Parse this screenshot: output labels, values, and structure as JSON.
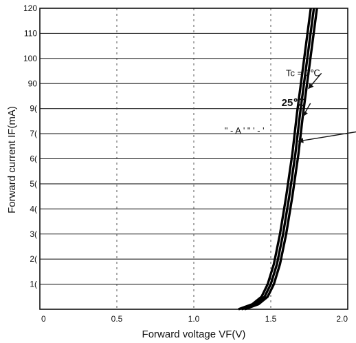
{
  "chart_data": {
    "type": "line",
    "title": "",
    "xlabel": "Forward  voltage  VF(V)",
    "ylabel": "Forward current IF(mA)",
    "xlim": [
      0,
      2.0
    ],
    "ylim": [
      0,
      120
    ],
    "grid": true,
    "x_ticks": [
      "0",
      "0.5",
      "1.0",
      "1.5",
      "2.0"
    ],
    "y_ticks": [
      "",
      "1(",
      "2(",
      "3(",
      "4(",
      "5(",
      "6(",
      "7(",
      "9(",
      "90",
      "100",
      "110",
      "120"
    ],
    "series": [
      {
        "name": "Tc = 0℃",
        "x": [
          1.33,
          1.42,
          1.48,
          1.52,
          1.56,
          1.6,
          1.64,
          1.68,
          1.71,
          1.74,
          1.77,
          1.8
        ],
        "y": [
          0,
          2,
          5,
          10,
          18,
          30,
          45,
          62,
          78,
          92,
          106,
          120
        ]
      },
      {
        "name": "25℃",
        "x": [
          1.31,
          1.4,
          1.46,
          1.5,
          1.54,
          1.58,
          1.62,
          1.66,
          1.69,
          1.72,
          1.75,
          1.78
        ],
        "y": [
          0,
          2,
          5,
          10,
          18,
          30,
          45,
          62,
          78,
          92,
          106,
          120
        ]
      },
      {
        "name": "A",
        "x": [
          1.29,
          1.38,
          1.44,
          1.48,
          1.52,
          1.56,
          1.6,
          1.64,
          1.67,
          1.7,
          1.73,
          1.76
        ],
        "y": [
          0,
          2,
          5,
          10,
          18,
          30,
          45,
          62,
          78,
          92,
          106,
          120
        ]
      }
    ],
    "annotations": [
      {
        "text": "Tc = 0℃",
        "target_series": 0,
        "label_x": 1.82,
        "label_y": 93,
        "arrow_to_x": 1.745,
        "arrow_to_y": 88
      },
      {
        "text": "25℃",
        "target_series": 1,
        "label_x": 1.57,
        "label_y": 81,
        "arrow_to_x": 1.71,
        "arrow_to_y": 77
      },
      {
        "text": "\"  -  A  '  \"  '  -  '",
        "target_series": 2,
        "label_x": 1.2,
        "label_y": 70,
        "arrow_to_x": 1.68,
        "arrow_to_y": 67
      }
    ]
  }
}
